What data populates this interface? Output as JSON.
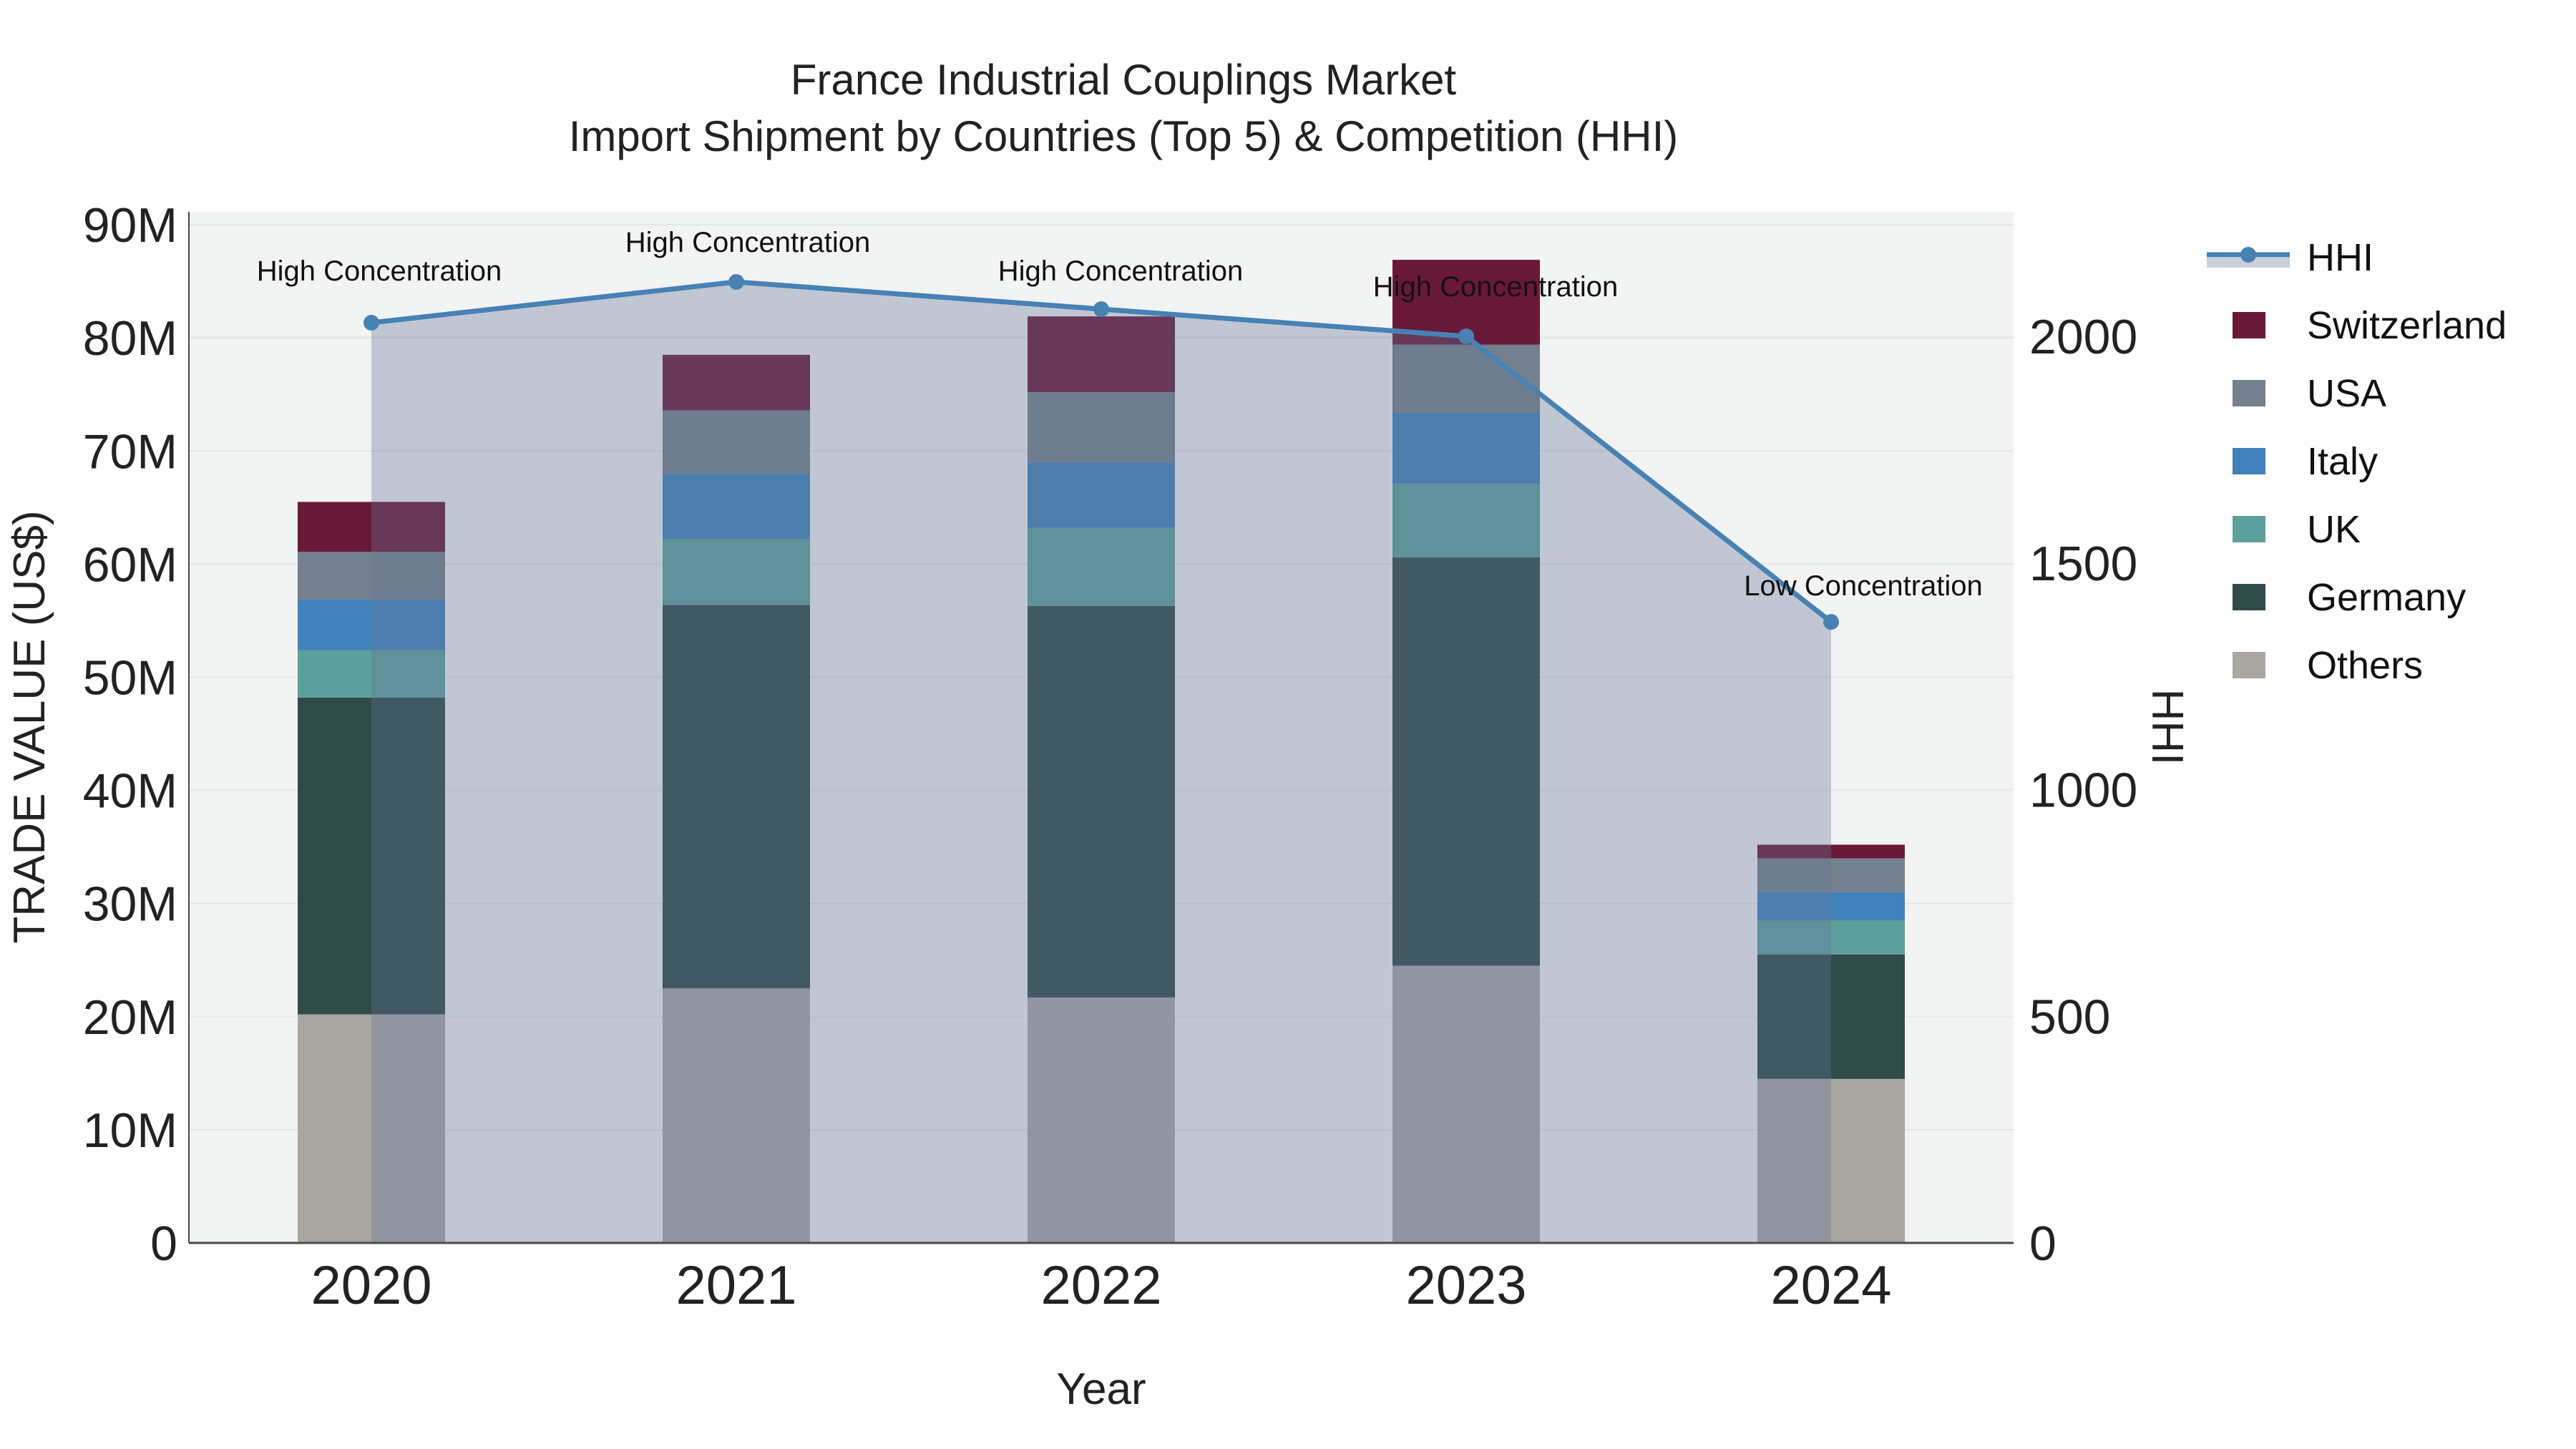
{
  "title": {
    "line1": "France Industrial Couplings Market",
    "line2": "Import Shipment by Countries (Top 5) & Competition (HHI)"
  },
  "axes": {
    "x": {
      "title": "Year",
      "ticks": [
        "2020",
        "2021",
        "2022",
        "2023",
        "2024"
      ]
    },
    "y_left": {
      "title": "TRADE VALUE (US$)",
      "ticks": [
        "0",
        "10M",
        "20M",
        "30M",
        "40M",
        "50M",
        "60M",
        "70M",
        "80M",
        "90M"
      ],
      "tick_values_millions": [
        0,
        10,
        20,
        30,
        40,
        50,
        60,
        70,
        80,
        90
      ]
    },
    "y_right": {
      "title": "HHI",
      "ticks": [
        "0",
        "500",
        "1000",
        "1500",
        "2000"
      ],
      "tick_values": [
        0,
        500,
        1000,
        1500,
        2000
      ]
    }
  },
  "legend": [
    {
      "label": "HHI",
      "type": "line",
      "color": "#4682B4"
    },
    {
      "label": "Switzerland",
      "type": "bar",
      "color": "#6A1838"
    },
    {
      "label": "USA",
      "type": "bar",
      "color": "#73808E"
    },
    {
      "label": "Italy",
      "type": "bar",
      "color": "#4181BA"
    },
    {
      "label": "UK",
      "type": "bar",
      "color": "#5BA09C"
    },
    {
      "label": "Germany",
      "type": "bar",
      "color": "#2E4B48"
    },
    {
      "label": "Others",
      "type": "bar",
      "color": "#AAA7A3"
    }
  ],
  "chart_data": {
    "type": "bar+line",
    "title": "France Industrial Couplings Market — Import Shipment by Countries (Top 5) & Competition (HHI)",
    "categories": [
      "2020",
      "2021",
      "2022",
      "2023",
      "2024"
    ],
    "xlabel": "Year",
    "ylabel_left": "TRADE VALUE (US$)",
    "ylabel_right": "HHI",
    "ylim_left_millions": [
      0,
      91
    ],
    "ylim_right": [
      0,
      2270
    ],
    "grid": true,
    "legend_position": "right",
    "stack_order_bottom_to_top": [
      "Others",
      "Germany",
      "UK",
      "Italy",
      "USA",
      "Switzerland"
    ],
    "bar_series_millions_usd": [
      {
        "name": "Switzerland",
        "color": "#6A1838",
        "values": [
          4.4,
          4.9,
          6.7,
          7.5,
          1.2
        ]
      },
      {
        "name": "USA",
        "color": "#73808E",
        "values": [
          4.2,
          5.6,
          6.2,
          6.0,
          3.0
        ]
      },
      {
        "name": "Italy",
        "color": "#4181BA",
        "values": [
          4.5,
          5.8,
          5.8,
          6.3,
          2.5
        ]
      },
      {
        "name": "UK",
        "color": "#5BA09C",
        "values": [
          4.2,
          5.8,
          6.9,
          6.5,
          3.0
        ]
      },
      {
        "name": "Germany",
        "color": "#2E4B48",
        "values": [
          28.0,
          33.9,
          34.6,
          36.1,
          11.0
        ]
      },
      {
        "name": "Others",
        "color": "#AAA7A3",
        "values": [
          20.2,
          22.5,
          21.7,
          24.5,
          14.5
        ]
      }
    ],
    "bar_totals_millions_usd": [
      65.5,
      78.5,
      81.9,
      86.9,
      35.2
    ],
    "line_series": {
      "name": "HHI",
      "axis": "right",
      "color": "#4682B4",
      "fill_to_zero": true,
      "values": [
        2030,
        2120,
        2060,
        2000,
        1370
      ]
    },
    "annotations": [
      {
        "category": "2020",
        "text": "High Concentration"
      },
      {
        "category": "2021",
        "text": "High Concentration"
      },
      {
        "category": "2022",
        "text": "High Concentration"
      },
      {
        "category": "2023",
        "text": "High Concentration"
      },
      {
        "category": "2024",
        "text": "Low Concentration"
      }
    ]
  },
  "colors": {
    "plot_background": "#F2F3F3",
    "gridline": "#E3E5E5",
    "axis_line": "#4A4A4A",
    "hhi_fill_rgba": "rgba(100,117,149,0.35)",
    "text": "#222222"
  }
}
